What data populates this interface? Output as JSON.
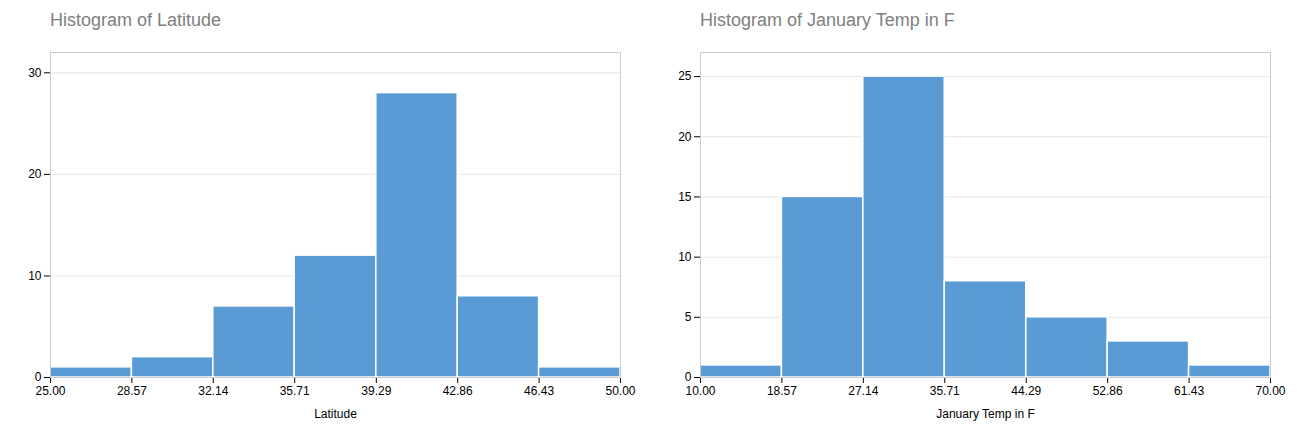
{
  "chart_data": [
    {
      "type": "histogram",
      "title": "Histogram of Latitude",
      "x_label": "Latitude",
      "bins": [
        25.0,
        28.57,
        32.14,
        35.71,
        39.29,
        42.86,
        46.43,
        50.0
      ],
      "values": [
        1,
        2,
        7,
        12,
        28,
        8,
        1
      ],
      "color": "#5b9bd5",
      "xlim": [
        25.0,
        50.0
      ],
      "xticks": [
        {
          "value": 25.0,
          "label": "25.00"
        },
        28.57,
        32.14,
        35.71,
        39.29,
        42.86,
        46.43,
        {
          "value": 50.0,
          "label": "50.00"
        }
      ],
      "ylim": [
        0,
        32
      ],
      "yticks": [
        0,
        10,
        20,
        30
      ],
      "grid": true
    },
    {
      "type": "histogram",
      "title": "Histogram of January Temp in F",
      "x_label": "January Temp in F",
      "bins": [
        10.0,
        18.57,
        27.14,
        35.71,
        44.29,
        52.86,
        61.43,
        70.0
      ],
      "values": [
        1,
        15,
        25,
        8,
        5,
        3,
        1
      ],
      "color": "#5b9bd5",
      "xlim": [
        10.0,
        70.0
      ],
      "xticks": [
        {
          "value": 10.0,
          "label": "10.00"
        },
        18.57,
        27.14,
        35.71,
        44.29,
        52.86,
        61.43,
        {
          "value": 70.0,
          "label": "70.00"
        }
      ],
      "ylim": [
        0,
        27
      ],
      "yticks": [
        0,
        5,
        10,
        15,
        20,
        25
      ],
      "grid": true
    }
  ]
}
